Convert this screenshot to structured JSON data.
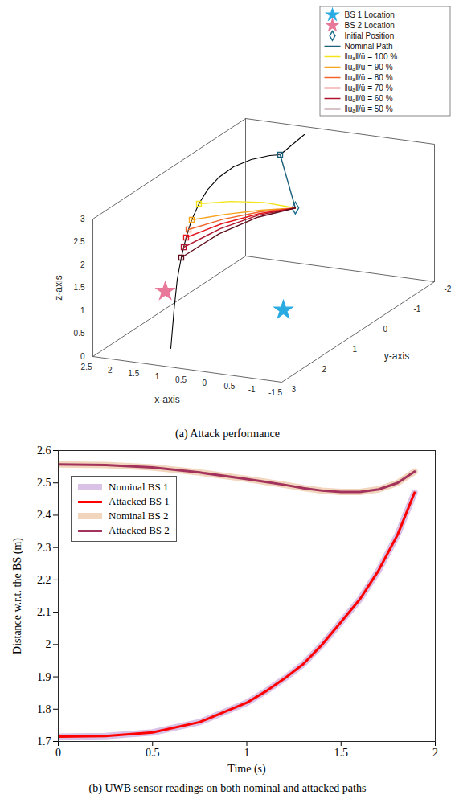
{
  "chart_data": [
    {
      "type": "line3d",
      "title": "(a) Attack performance",
      "xlabel": "x-axis",
      "ylabel": "y-axis",
      "zlabel": "z-axis",
      "xlim": [
        -1.5,
        2.5
      ],
      "ylim": [
        -2,
        3
      ],
      "zlim": [
        0,
        3
      ],
      "xticks": [
        -1.5,
        -1,
        -0.5,
        0,
        0.5,
        1,
        1.5,
        2,
        2.5
      ],
      "yticks": [
        -2,
        -1,
        0,
        1,
        2,
        3
      ],
      "zticks": [
        0,
        0.5,
        1,
        1.5,
        2,
        2.5,
        3
      ],
      "legend": "northeast",
      "series": [
        {
          "name": "BS 1 Location",
          "type": "scatter",
          "marker": "star",
          "color": "#29abe2",
          "points": [
            [
              -0.24,
              1,
              0.52
            ]
          ]
        },
        {
          "name": "BS 2 Location",
          "type": "scatter",
          "marker": "star",
          "color": "#e8789a",
          "points": [
            [
              2.26,
              1,
              0.58
            ]
          ]
        },
        {
          "name": "Initial Position",
          "type": "scatter",
          "marker": "diamond",
          "color": "#1b6b8a",
          "points": [
            [
              -0.17,
              0.5,
              2.52
            ]
          ]
        },
        {
          "name": "Nominal Path",
          "type": "line",
          "marker": "square",
          "color": "#1c5f7a",
          "points": [
            [
              -0.17,
              0.5,
              2.52
            ],
            [
              0.929,
              -0.703,
              3.0
            ]
          ]
        },
        {
          "name": "‖uₐ‖/ū = 100 %",
          "type": "line",
          "marker": "square",
          "color": "#f2e41a",
          "points": [
            [
              -0.17,
              0.5,
              2.52
            ],
            [
              0.41,
              0.64,
              2.62
            ],
            [
              1.01,
              0.78,
              2.62
            ],
            [
              1.596,
              0.925,
              2.55
            ]
          ]
        },
        {
          "name": "‖uₐ‖/ū = 90 %",
          "type": "line",
          "marker": "square",
          "color": "#f7a21b",
          "points": [
            [
              -0.17,
              0.5,
              2.52
            ],
            [
              0.4,
              0.75,
              2.5
            ],
            [
              0.98,
              1.0,
              2.44
            ],
            [
              1.539,
              1.25,
              2.35
            ]
          ]
        },
        {
          "name": "‖uₐ‖/ū = 80 %",
          "type": "line",
          "marker": "square",
          "color": "#f0642a",
          "points": [
            [
              -0.17,
              0.5,
              2.52
            ],
            [
              0.38,
              0.8,
              2.49
            ],
            [
              0.95,
              1.12,
              2.39
            ],
            [
              1.497,
              1.42,
              2.22
            ]
          ]
        },
        {
          "name": "‖uₐ‖/ū = 70 %",
          "type": "line",
          "marker": "square",
          "color": "#e3141c",
          "points": [
            [
              -0.17,
              0.5,
              2.52
            ],
            [
              0.37,
              0.84,
              2.47
            ],
            [
              0.93,
              1.2,
              2.33
            ],
            [
              1.471,
              1.539,
              2.1
            ]
          ]
        },
        {
          "name": "‖uₐ‖/ū = 60 %",
          "type": "line",
          "marker": "square",
          "color": "#b0132c",
          "points": [
            [
              -0.17,
              0.5,
              2.52
            ],
            [
              0.36,
              0.89,
              2.46
            ],
            [
              0.91,
              1.28,
              2.26
            ],
            [
              1.439,
              1.667,
              1.95
            ]
          ]
        },
        {
          "name": "‖uₐ‖/ū = 50 %",
          "type": "line",
          "marker": "square",
          "color": "#5e0b1a",
          "points": [
            [
              -0.17,
              0.5,
              2.52
            ],
            [
              0.34,
              0.94,
              2.44
            ],
            [
              0.87,
              1.39,
              2.2
            ],
            [
              1.386,
              1.828,
              1.8
            ]
          ]
        }
      ],
      "reference_path": {
        "color": "#000000",
        "points": [
          [
            1.347,
            2.231,
            0
          ],
          [
            1.342,
            2.133,
            0.8
          ],
          [
            1.367,
            1.989,
            1.4
          ],
          [
            1.386,
            1.828,
            1.8
          ],
          [
            1.439,
            1.667,
            1.95
          ],
          [
            1.471,
            1.539,
            2.1
          ],
          [
            1.497,
            1.42,
            2.22
          ],
          [
            1.539,
            1.25,
            2.35
          ],
          [
            1.596,
            0.925,
            2.55
          ],
          [
            1.643,
            0.562,
            2.7
          ],
          [
            1.645,
            0.19,
            2.8
          ],
          [
            1.609,
            -0.227,
            2.85
          ],
          [
            1.431,
            -0.53,
            2.9
          ],
          [
            1.152,
            -0.705,
            2.95
          ],
          [
            0.929,
            -0.703,
            3.0
          ],
          [
            1.042,
            -1.667,
            3.0
          ]
        ]
      }
    },
    {
      "type": "line",
      "title": "(b) UWB sensor readings on both nominal and attacked paths",
      "xlabel": "Time (s)",
      "ylabel": "Distance w.r.t. the BS (m)",
      "xlim": [
        0,
        2
      ],
      "ylim": [
        1.7,
        2.6
      ],
      "xticks": [
        0,
        0.5,
        1,
        1.5,
        2
      ],
      "yticks": [
        1.7,
        1.8,
        1.9,
        2,
        2.1,
        2.2,
        2.3,
        2.4,
        2.5,
        2.6
      ],
      "legend": "northwest",
      "x": [
        0,
        0.25,
        0.5,
        0.75,
        1.0,
        1.1,
        1.2,
        1.3,
        1.4,
        1.5,
        1.6,
        1.7,
        1.8,
        1.89
      ],
      "series": [
        {
          "name": "Nominal BS 1",
          "color": "#d9c2e6",
          "line_style": "thick",
          "values": [
            1.715,
            1.717,
            1.728,
            1.76,
            1.82,
            1.855,
            1.895,
            1.94,
            2.0,
            2.07,
            2.14,
            2.23,
            2.34,
            2.47
          ]
        },
        {
          "name": "Attacked BS 1",
          "color": "#ff0000",
          "line_style": "solid",
          "values": [
            1.715,
            1.717,
            1.728,
            1.76,
            1.82,
            1.855,
            1.895,
            1.94,
            2.0,
            2.07,
            2.14,
            2.23,
            2.34,
            2.47
          ]
        },
        {
          "name": "Nominal BS 2",
          "color": "#f2d5bd",
          "line_style": "thick",
          "values": [
            2.557,
            2.555,
            2.548,
            2.532,
            2.512,
            2.503,
            2.494,
            2.484,
            2.476,
            2.472,
            2.472,
            2.48,
            2.5,
            2.535
          ]
        },
        {
          "name": "Attacked BS 2",
          "color": "#a3335c",
          "line_style": "solid",
          "values": [
            2.557,
            2.555,
            2.548,
            2.532,
            2.512,
            2.503,
            2.494,
            2.484,
            2.476,
            2.472,
            2.472,
            2.48,
            2.5,
            2.535
          ]
        }
      ]
    }
  ]
}
